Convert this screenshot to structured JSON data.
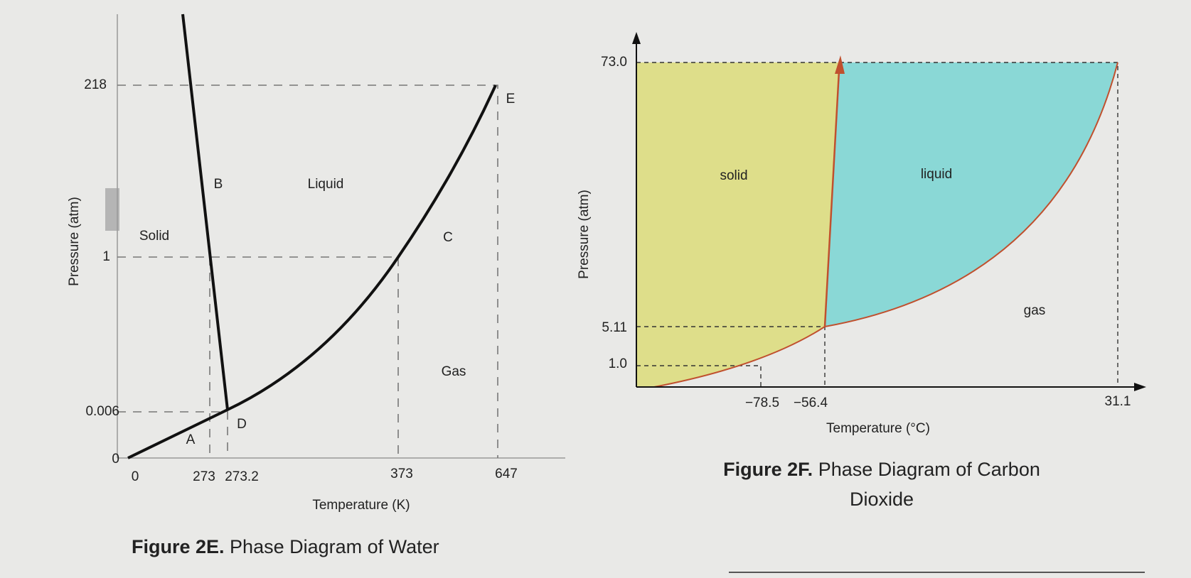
{
  "water": {
    "caption_label": "Figure 2E.",
    "caption_text": "Phase Diagram of Water",
    "y_axis_label": "Pressure (atm)",
    "x_axis_label": "Temperature (K)",
    "y_ticks": [
      "218",
      "1",
      "0.006",
      "0"
    ],
    "x_ticks": [
      "0",
      "273",
      "273.2",
      "373",
      "647"
    ],
    "regions": [
      "Solid",
      "Liquid",
      "Gas"
    ],
    "points": [
      "A",
      "B",
      "C",
      "D",
      "E"
    ]
  },
  "co2": {
    "caption_label": "Figure 2F.",
    "caption_text_1": "Phase Diagram of Carbon",
    "caption_text_2": "Dioxide",
    "y_axis_label": "Pressure (atm)",
    "x_axis_label": "Temperature (°C)",
    "y_ticks": [
      "73.0",
      "5.11",
      "1.0"
    ],
    "x_ticks": [
      "−78.5",
      "−56.4",
      "31.1"
    ],
    "regions": [
      "solid",
      "liquid",
      "gas"
    ]
  }
}
